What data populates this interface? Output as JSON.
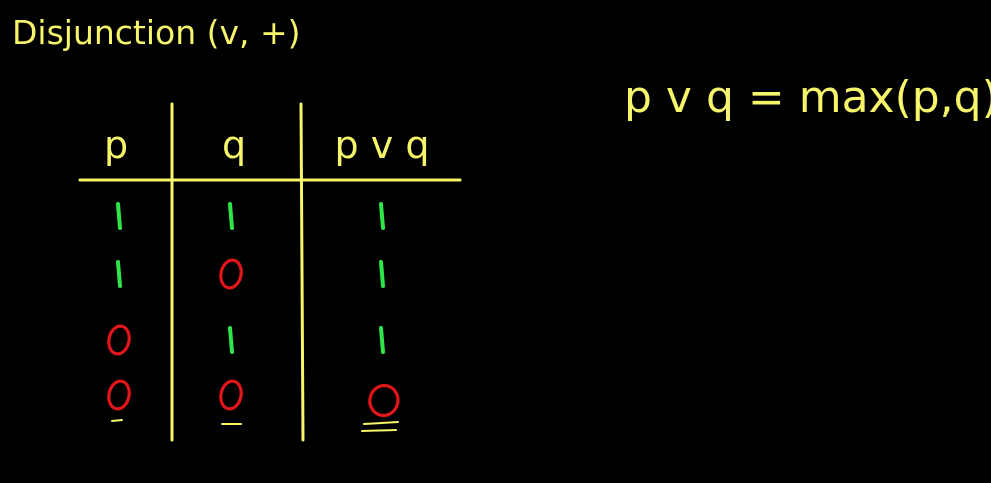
{
  "title": "Disjunction (v, +)",
  "formula": "p v q = max(p,q)",
  "table": {
    "headers": [
      "p",
      "q",
      "p v q"
    ],
    "rows": [
      [
        "1",
        "1",
        "1"
      ],
      [
        "1",
        "0",
        "1"
      ],
      [
        "0",
        "1",
        "1"
      ],
      [
        "0",
        "0",
        "0"
      ]
    ]
  },
  "colors": {
    "background": "#000000",
    "chalk_yellow": "#f7f56a",
    "true_green": "#2ee64a",
    "false_red": "#e0161b"
  }
}
